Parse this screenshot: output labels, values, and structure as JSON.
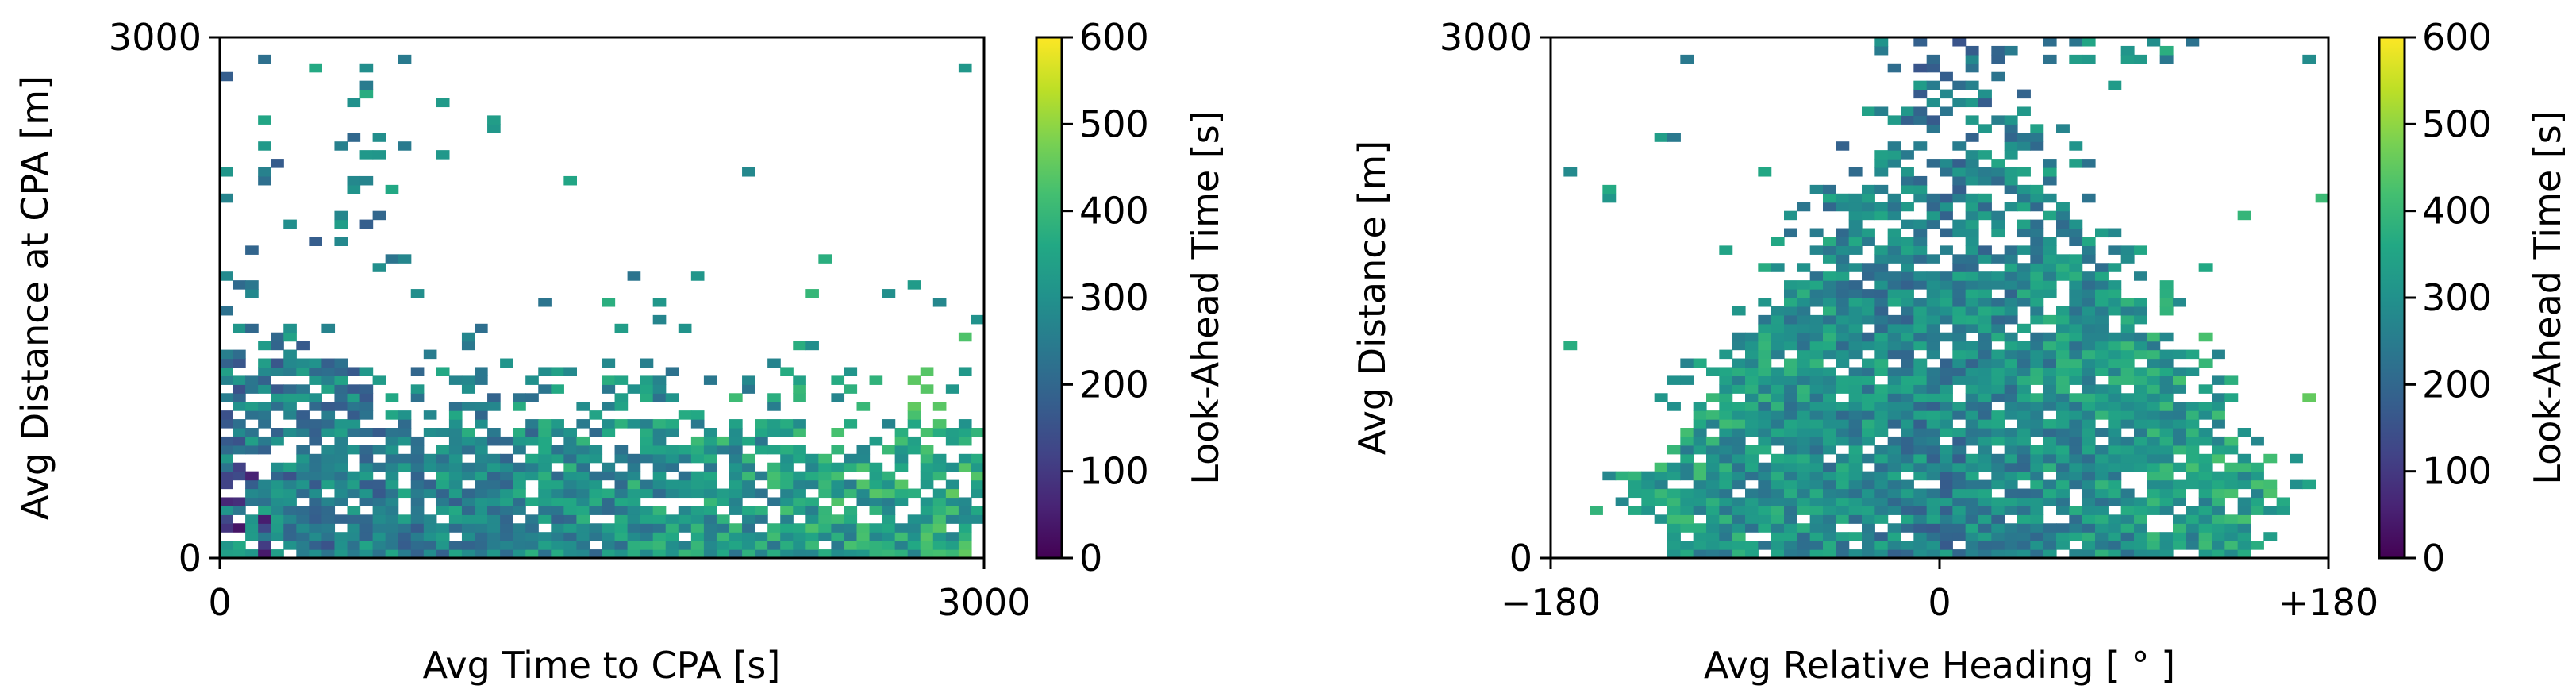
{
  "chart_data": [
    {
      "type": "heatmap",
      "xlabel": "Avg Time to CPA [s]",
      "ylabel": "Avg Distance at CPA [m]",
      "xlim": [
        0,
        3000
      ],
      "ylim": [
        0,
        3000
      ],
      "x_ticks": [
        "0",
        "3000"
      ],
      "y_ticks": [
        "0",
        "3000"
      ],
      "bins": [
        60,
        60
      ],
      "colorbar": {
        "label": "Look-Ahead Time [s]",
        "range": [
          0,
          600
        ],
        "ticks": [
          "0",
          "100",
          "200",
          "300",
          "400",
          "500",
          "600"
        ],
        "colormap": "viridis"
      },
      "description_of_density": "occupied cells concentrate at distance below ~1300 m across all times; sparse cells above, clustered near time < 800 s"
    },
    {
      "type": "heatmap",
      "xlabel": "Avg Relative Heading [$^\\circ$]",
      "xlabel_display": "Avg Relative Heading [ ° ]",
      "ylabel": "Avg Distance [m]",
      "xlim": [
        -180,
        180
      ],
      "ylim": [
        0,
        3000
      ],
      "x_ticks": [
        "−180",
        "0",
        "+180"
      ],
      "y_ticks": [
        "0",
        "3000"
      ],
      "bins": [
        60,
        60
      ],
      "colorbar": {
        "label": "Look-Ahead Time [s]",
        "range": [
          0,
          600
        ],
        "ticks": [
          "0",
          "100",
          "200",
          "300",
          "400",
          "500",
          "600"
        ],
        "colormap": "viridis"
      },
      "description_of_density": "dense dome centered near 0 degrees, widest at distance ~500 m, thinning toward 3000 m"
    }
  ]
}
